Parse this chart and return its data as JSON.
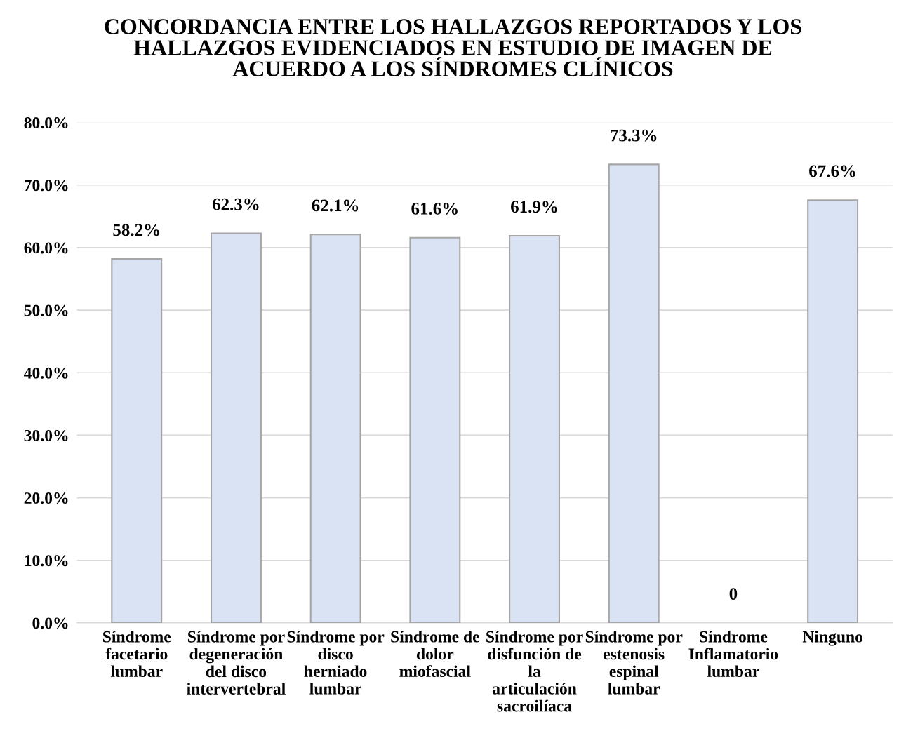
{
  "chart_data": {
    "type": "bar",
    "title": "CONCORDANCIA ENTRE LOS HALLAZGOS REPORTADOS Y LOS\nHALLAZGOS EVIDENCIADOS EN ESTUDIO DE IMAGEN DE\nACUERDO A LOS SÍNDROMES CLÍNICOS",
    "categories": [
      "Síndrome\nfacetario\nlumbar",
      "Síndrome por\ndegeneración\ndel disco\nintervertebral",
      "Síndrome por\ndisco\nherniado\nlumbar",
      "Síndrome de\ndolor\nmiofascial",
      "Síndrome por\ndisfunción de\nla\narticulación\nsacroilíaca",
      "Síndrome por\nestenosis\nespinal\nlumbar",
      "Síndrome\nInflamatorio\nlumbar",
      "Ninguno"
    ],
    "values": [
      58.2,
      62.3,
      62.1,
      61.6,
      61.9,
      73.3,
      0,
      67.6
    ],
    "value_labels": [
      "58.2%",
      "62.3%",
      "62.1%",
      "61.6%",
      "61.9%",
      "73.3%",
      "0",
      "67.6%"
    ],
    "color": "#dae3f3",
    "ylim": [
      0,
      80
    ],
    "yticks": [
      {
        "value": 0,
        "label": "0.0%"
      },
      {
        "value": 10,
        "label": "10.0%"
      },
      {
        "value": 20,
        "label": "20.0%"
      },
      {
        "value": 30,
        "label": "30.0%"
      },
      {
        "value": 40,
        "label": "40.0%"
      },
      {
        "value": 50,
        "label": "50.0%"
      },
      {
        "value": 60,
        "label": "60.0%"
      },
      {
        "value": 70,
        "label": "70.0%"
      },
      {
        "value": 80,
        "label": "80.0%"
      }
    ],
    "grid": "y"
  }
}
